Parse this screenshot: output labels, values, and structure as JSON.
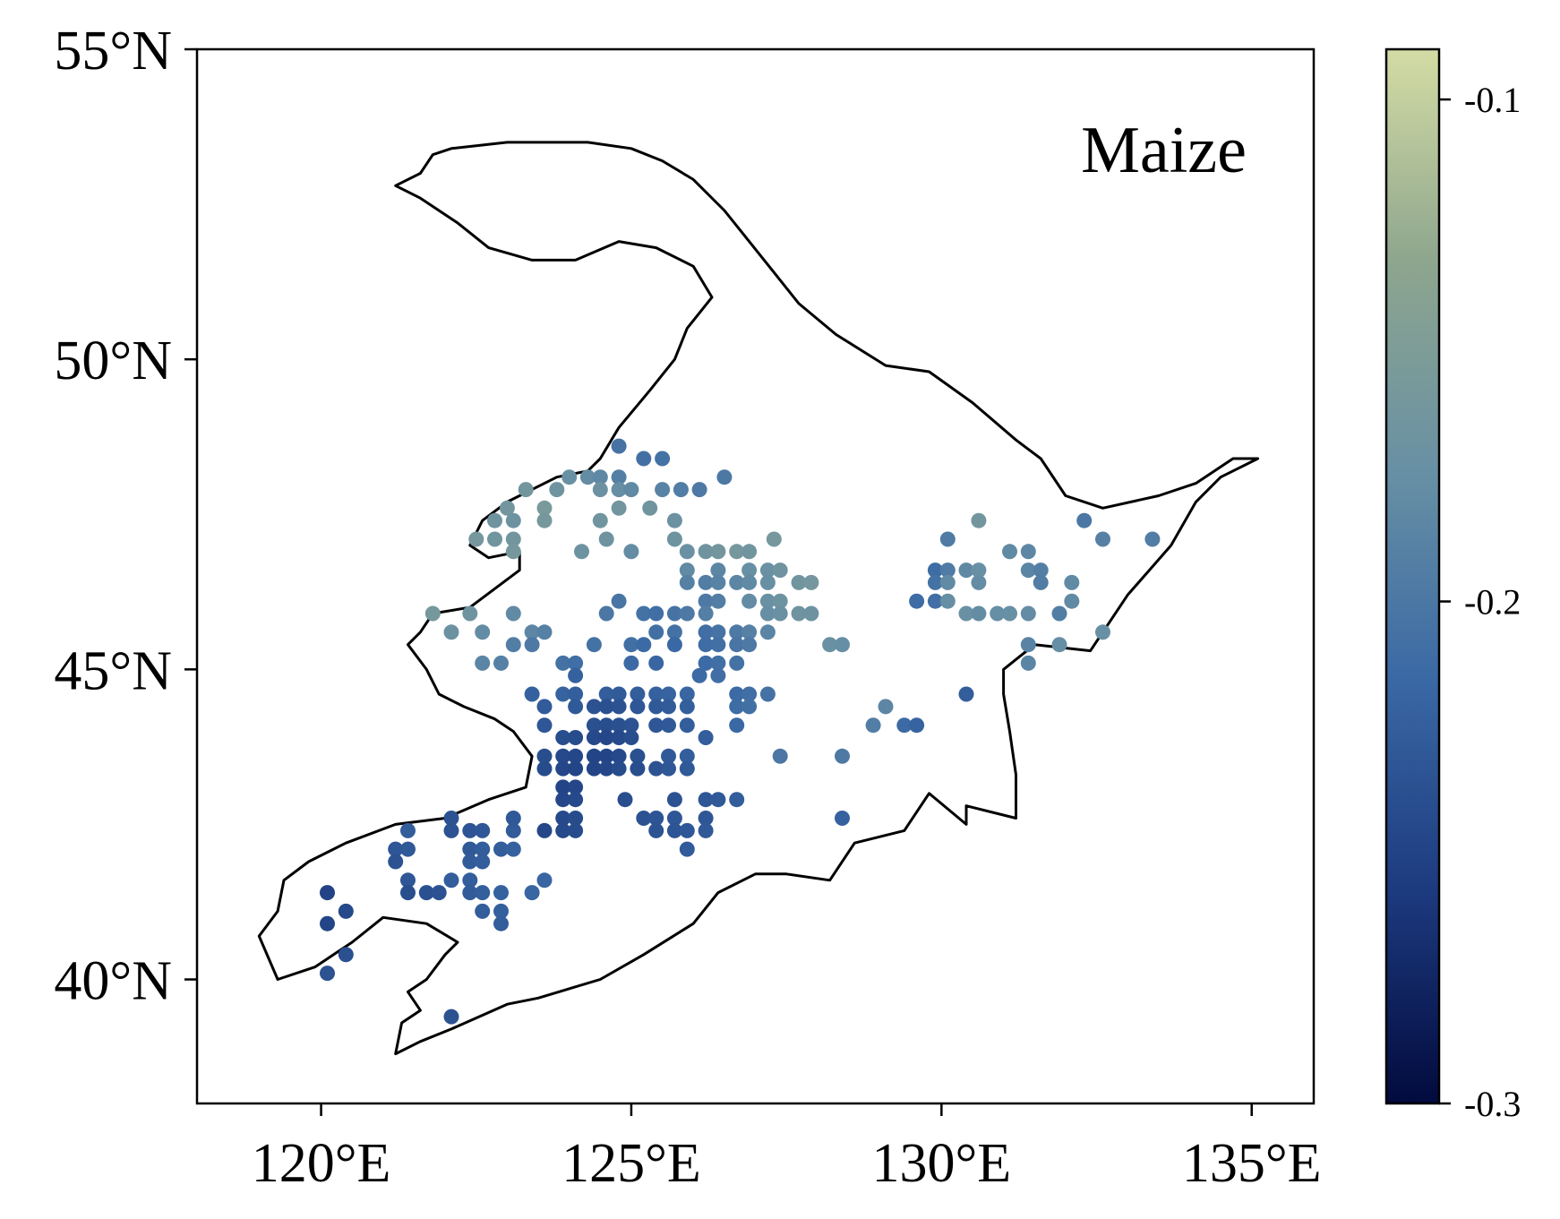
{
  "panel_label": "Maize",
  "colorbar": {
    "min": -0.3,
    "max": -0.09,
    "tick_values": [
      -0.1,
      -0.2,
      -0.3
    ],
    "tick_labels": [
      "-0.1",
      "-0.2",
      "-0.3"
    ],
    "colors": [
      "#020a3d",
      "#1c3a7e",
      "#3a68a4",
      "#6890a4",
      "#8ea68e",
      "#d4dca4"
    ]
  },
  "map": {
    "lon_range": [
      118,
      136
    ],
    "lat_range": [
      38,
      55
    ],
    "x_ticks": [
      120,
      125,
      130,
      135
    ],
    "x_tick_labels": [
      "120°E",
      "125°E",
      "130°E",
      "135°E"
    ],
    "y_ticks": [
      40,
      45,
      50,
      55
    ],
    "y_tick_labels": [
      "40°N",
      "45°N",
      "50°N",
      "55°N"
    ],
    "boundary": [
      [
        122.1,
        53.4
      ],
      [
        123.0,
        53.5
      ],
      [
        124.3,
        53.5
      ],
      [
        125.0,
        53.4
      ],
      [
        125.5,
        53.2
      ],
      [
        126.0,
        52.9
      ],
      [
        126.5,
        52.4
      ],
      [
        126.9,
        51.9
      ],
      [
        127.3,
        51.4
      ],
      [
        127.7,
        50.9
      ],
      [
        128.3,
        50.4
      ],
      [
        129.1,
        49.9
      ],
      [
        129.8,
        49.8
      ],
      [
        130.5,
        49.3
      ],
      [
        131.2,
        48.7
      ],
      [
        131.6,
        48.4
      ],
      [
        132.0,
        47.8
      ],
      [
        132.6,
        47.6
      ],
      [
        133.5,
        47.8
      ],
      [
        134.1,
        48.0
      ],
      [
        134.7,
        48.4
      ],
      [
        135.1,
        48.4
      ],
      [
        134.5,
        48.1
      ],
      [
        134.1,
        47.7
      ],
      [
        133.7,
        47.0
      ],
      [
        133.0,
        46.2
      ],
      [
        132.4,
        45.3
      ],
      [
        131.5,
        45.4
      ],
      [
        131.0,
        45.0
      ],
      [
        131.0,
        44.6
      ],
      [
        131.1,
        44.0
      ],
      [
        131.2,
        43.3
      ],
      [
        131.2,
        42.6
      ],
      [
        130.4,
        42.8
      ],
      [
        130.4,
        42.5
      ],
      [
        129.8,
        43.0
      ],
      [
        129.4,
        42.4
      ],
      [
        128.6,
        42.2
      ],
      [
        128.2,
        41.6
      ],
      [
        127.5,
        41.7
      ],
      [
        127.0,
        41.7
      ],
      [
        126.4,
        41.4
      ],
      [
        126.0,
        40.9
      ],
      [
        125.2,
        40.4
      ],
      [
        124.5,
        40.0
      ],
      [
        123.5,
        39.7
      ],
      [
        123.0,
        39.6
      ],
      [
        122.1,
        39.2
      ],
      [
        121.6,
        39.0
      ],
      [
        121.2,
        38.8
      ],
      [
        121.3,
        39.3
      ],
      [
        121.6,
        39.5
      ],
      [
        121.4,
        39.8
      ],
      [
        121.7,
        40.0
      ],
      [
        122.0,
        40.4
      ],
      [
        122.2,
        40.6
      ],
      [
        121.7,
        40.9
      ],
      [
        121.0,
        41.0
      ],
      [
        120.5,
        40.6
      ],
      [
        119.9,
        40.2
      ],
      [
        119.3,
        40.0
      ],
      [
        119.0,
        40.7
      ],
      [
        119.3,
        41.1
      ],
      [
        119.4,
        41.6
      ],
      [
        119.8,
        41.9
      ],
      [
        120.4,
        42.2
      ],
      [
        121.2,
        42.5
      ],
      [
        122.0,
        42.6
      ],
      [
        122.7,
        42.9
      ],
      [
        123.3,
        43.1
      ],
      [
        123.4,
        43.6
      ],
      [
        123.1,
        44.0
      ],
      [
        122.8,
        44.2
      ],
      [
        122.3,
        44.4
      ],
      [
        121.9,
        44.6
      ],
      [
        121.7,
        45.0
      ],
      [
        121.4,
        45.4
      ],
      [
        121.6,
        45.6
      ],
      [
        121.8,
        45.9
      ],
      [
        122.4,
        46.0
      ],
      [
        122.8,
        46.3
      ],
      [
        123.2,
        46.6
      ],
      [
        123.2,
        46.9
      ],
      [
        122.7,
        46.8
      ],
      [
        122.4,
        47.0
      ],
      [
        122.6,
        47.4
      ],
      [
        123.0,
        47.7
      ],
      [
        123.8,
        48.1
      ],
      [
        124.3,
        48.2
      ],
      [
        124.5,
        48.4
      ],
      [
        124.8,
        48.9
      ],
      [
        125.3,
        49.5
      ],
      [
        125.7,
        50.0
      ],
      [
        125.9,
        50.5
      ],
      [
        126.3,
        51.0
      ],
      [
        126.0,
        51.5
      ],
      [
        125.4,
        51.8
      ],
      [
        124.8,
        51.9
      ],
      [
        124.1,
        51.6
      ],
      [
        123.4,
        51.6
      ],
      [
        122.7,
        51.8
      ],
      [
        122.2,
        52.2
      ],
      [
        121.6,
        52.6
      ],
      [
        121.2,
        52.8
      ],
      [
        121.6,
        53.0
      ],
      [
        121.8,
        53.3
      ],
      [
        122.1,
        53.4
      ]
    ]
  },
  "points": [
    [
      124.8,
      48.6,
      -0.205
    ],
    [
      125.2,
      48.4,
      -0.208
    ],
    [
      125.5,
      48.4,
      -0.206
    ],
    [
      124.8,
      48.1,
      -0.192
    ],
    [
      126.5,
      48.1,
      -0.199
    ],
    [
      124.0,
      48.1,
      -0.172
    ],
    [
      124.3,
      48.1,
      -0.178
    ],
    [
      124.5,
      48.1,
      -0.182
    ],
    [
      123.3,
      47.9,
      -0.162
    ],
    [
      123.8,
      47.9,
      -0.166
    ],
    [
      124.5,
      47.9,
      -0.17
    ],
    [
      124.8,
      47.9,
      -0.176
    ],
    [
      125.0,
      47.9,
      -0.18
    ],
    [
      125.5,
      47.9,
      -0.188
    ],
    [
      125.8,
      47.9,
      -0.194
    ],
    [
      126.1,
      47.9,
      -0.198
    ],
    [
      123.6,
      47.6,
      -0.155
    ],
    [
      124.8,
      47.6,
      -0.162
    ],
    [
      125.3,
      47.6,
      -0.165
    ],
    [
      123.0,
      47.6,
      -0.162
    ],
    [
      122.8,
      47.4,
      -0.166
    ],
    [
      123.1,
      47.4,
      -0.168
    ],
    [
      123.6,
      47.4,
      -0.158
    ],
    [
      124.5,
      47.4,
      -0.164
    ],
    [
      125.7,
      47.4,
      -0.17
    ],
    [
      122.5,
      47.1,
      -0.16
    ],
    [
      122.8,
      47.1,
      -0.164
    ],
    [
      123.1,
      47.1,
      -0.162
    ],
    [
      124.6,
      47.1,
      -0.166
    ],
    [
      125.7,
      47.1,
      -0.168
    ],
    [
      127.3,
      47.1,
      -0.16
    ],
    [
      123.1,
      46.9,
      -0.158
    ],
    [
      124.2,
      46.9,
      -0.168
    ],
    [
      125.0,
      46.9,
      -0.178
    ],
    [
      125.9,
      46.9,
      -0.172
    ],
    [
      126.2,
      46.9,
      -0.166
    ],
    [
      126.4,
      46.9,
      -0.162
    ],
    [
      126.7,
      46.9,
      -0.16
    ],
    [
      126.9,
      46.9,
      -0.164
    ],
    [
      125.9,
      46.6,
      -0.18
    ],
    [
      126.4,
      46.6,
      -0.184
    ],
    [
      126.9,
      46.6,
      -0.174
    ],
    [
      127.2,
      46.6,
      -0.172
    ],
    [
      127.4,
      46.6,
      -0.166
    ],
    [
      125.9,
      46.4,
      -0.19
    ],
    [
      126.2,
      46.4,
      -0.194
    ],
    [
      126.4,
      46.4,
      -0.188
    ],
    [
      126.7,
      46.4,
      -0.184
    ],
    [
      126.9,
      46.4,
      -0.18
    ],
    [
      127.2,
      46.4,
      -0.174
    ],
    [
      127.7,
      46.4,
      -0.164
    ],
    [
      127.9,
      46.4,
      -0.16
    ],
    [
      126.2,
      46.1,
      -0.198
    ],
    [
      126.4,
      46.1,
      -0.194
    ],
    [
      126.9,
      46.1,
      -0.178
    ],
    [
      127.2,
      46.1,
      -0.172
    ],
    [
      127.4,
      46.1,
      -0.168
    ],
    [
      124.8,
      46.1,
      -0.202
    ],
    [
      125.2,
      45.9,
      -0.206
    ],
    [
      125.4,
      45.9,
      -0.21
    ],
    [
      125.7,
      45.9,
      -0.204
    ],
    [
      125.9,
      45.9,
      -0.198
    ],
    [
      126.2,
      45.9,
      -0.192
    ],
    [
      127.2,
      45.9,
      -0.176
    ],
    [
      127.4,
      45.9,
      -0.172
    ],
    [
      127.7,
      45.9,
      -0.166
    ],
    [
      127.9,
      45.9,
      -0.168
    ],
    [
      124.6,
      45.9,
      -0.2
    ],
    [
      121.8,
      45.9,
      -0.158
    ],
    [
      122.4,
      45.9,
      -0.166
    ],
    [
      123.1,
      45.9,
      -0.18
    ],
    [
      125.4,
      45.6,
      -0.208
    ],
    [
      125.7,
      45.6,
      -0.206
    ],
    [
      126.2,
      45.6,
      -0.21
    ],
    [
      126.4,
      45.6,
      -0.204
    ],
    [
      126.7,
      45.6,
      -0.198
    ],
    [
      126.9,
      45.6,
      -0.19
    ],
    [
      127.2,
      45.6,
      -0.186
    ],
    [
      122.1,
      45.6,
      -0.17
    ],
    [
      122.6,
      45.6,
      -0.178
    ],
    [
      123.4,
      45.6,
      -0.184
    ],
    [
      123.6,
      45.6,
      -0.19
    ],
    [
      123.1,
      45.4,
      -0.194
    ],
    [
      123.4,
      45.4,
      -0.198
    ],
    [
      124.4,
      45.4,
      -0.206
    ],
    [
      125.0,
      45.4,
      -0.208
    ],
    [
      125.2,
      45.4,
      -0.214
    ],
    [
      125.7,
      45.4,
      -0.216
    ],
    [
      126.2,
      45.4,
      -0.212
    ],
    [
      126.4,
      45.4,
      -0.208
    ],
    [
      126.7,
      45.4,
      -0.202
    ],
    [
      126.9,
      45.4,
      -0.198
    ],
    [
      128.2,
      45.4,
      -0.172
    ],
    [
      128.4,
      45.4,
      -0.176
    ],
    [
      122.6,
      45.1,
      -0.186
    ],
    [
      122.9,
      45.1,
      -0.19
    ],
    [
      123.9,
      45.1,
      -0.206
    ],
    [
      124.1,
      45.1,
      -0.21
    ],
    [
      125.0,
      45.1,
      -0.214
    ],
    [
      125.4,
      45.1,
      -0.218
    ],
    [
      126.2,
      45.1,
      -0.214
    ],
    [
      126.4,
      45.1,
      -0.21
    ],
    [
      126.7,
      45.1,
      -0.206
    ],
    [
      124.1,
      44.9,
      -0.222
    ],
    [
      126.1,
      44.9,
      -0.214
    ],
    [
      126.4,
      44.9,
      -0.21
    ],
    [
      123.4,
      44.6,
      -0.222
    ],
    [
      123.9,
      44.6,
      -0.22
    ],
    [
      124.1,
      44.6,
      -0.224
    ],
    [
      124.6,
      44.6,
      -0.226
    ],
    [
      124.8,
      44.6,
      -0.228
    ],
    [
      125.1,
      44.6,
      -0.226
    ],
    [
      125.4,
      44.6,
      -0.222
    ],
    [
      125.6,
      44.6,
      -0.22
    ],
    [
      125.9,
      44.6,
      -0.218
    ],
    [
      126.7,
      44.6,
      -0.214
    ],
    [
      126.9,
      44.6,
      -0.21
    ],
    [
      127.2,
      44.6,
      -0.206
    ],
    [
      123.6,
      44.4,
      -0.228
    ],
    [
      124.1,
      44.4,
      -0.23
    ],
    [
      124.4,
      44.4,
      -0.236
    ],
    [
      124.6,
      44.4,
      -0.238
    ],
    [
      124.8,
      44.4,
      -0.236
    ],
    [
      125.1,
      44.4,
      -0.232
    ],
    [
      125.4,
      44.4,
      -0.23
    ],
    [
      125.6,
      44.4,
      -0.228
    ],
    [
      125.9,
      44.4,
      -0.224
    ],
    [
      126.7,
      44.4,
      -0.212
    ],
    [
      126.9,
      44.4,
      -0.208
    ],
    [
      123.6,
      44.1,
      -0.232
    ],
    [
      124.4,
      44.1,
      -0.238
    ],
    [
      124.6,
      44.1,
      -0.24
    ],
    [
      124.8,
      44.1,
      -0.238
    ],
    [
      125.0,
      44.1,
      -0.236
    ],
    [
      125.4,
      44.1,
      -0.232
    ],
    [
      125.6,
      44.1,
      -0.23
    ],
    [
      125.9,
      44.1,
      -0.226
    ],
    [
      126.7,
      44.1,
      -0.216
    ],
    [
      128.9,
      44.1,
      -0.194
    ],
    [
      129.4,
      44.1,
      -0.214
    ],
    [
      129.6,
      44.1,
      -0.22
    ],
    [
      129.1,
      44.4,
      -0.184
    ],
    [
      130.4,
      44.6,
      -0.226
    ],
    [
      123.9,
      43.9,
      -0.24
    ],
    [
      124.1,
      43.9,
      -0.242
    ],
    [
      124.4,
      43.9,
      -0.244
    ],
    [
      124.6,
      43.9,
      -0.246
    ],
    [
      124.8,
      43.9,
      -0.244
    ],
    [
      125.0,
      43.9,
      -0.24
    ],
    [
      126.2,
      43.9,
      -0.226
    ],
    [
      123.6,
      43.6,
      -0.24
    ],
    [
      123.9,
      43.6,
      -0.244
    ],
    [
      124.1,
      43.6,
      -0.246
    ],
    [
      124.4,
      43.6,
      -0.248
    ],
    [
      124.6,
      43.6,
      -0.248
    ],
    [
      124.8,
      43.6,
      -0.244
    ],
    [
      125.1,
      43.6,
      -0.238
    ],
    [
      125.6,
      43.6,
      -0.23
    ],
    [
      125.9,
      43.6,
      -0.226
    ],
    [
      127.4,
      43.6,
      -0.2
    ],
    [
      128.4,
      43.6,
      -0.198
    ],
    [
      123.6,
      43.4,
      -0.242
    ],
    [
      123.9,
      43.4,
      -0.246
    ],
    [
      124.1,
      43.4,
      -0.248
    ],
    [
      124.4,
      43.4,
      -0.248
    ],
    [
      124.6,
      43.4,
      -0.246
    ],
    [
      124.8,
      43.4,
      -0.242
    ],
    [
      125.1,
      43.4,
      -0.24
    ],
    [
      125.4,
      43.4,
      -0.236
    ],
    [
      125.6,
      43.4,
      -0.232
    ],
    [
      125.9,
      43.4,
      -0.23
    ],
    [
      123.9,
      43.1,
      -0.248
    ],
    [
      124.1,
      43.1,
      -0.246
    ],
    [
      123.9,
      42.9,
      -0.246
    ],
    [
      124.1,
      42.9,
      -0.244
    ],
    [
      124.9,
      42.9,
      -0.24
    ],
    [
      125.7,
      42.9,
      -0.236
    ],
    [
      126.2,
      42.9,
      -0.232
    ],
    [
      126.4,
      42.9,
      -0.23
    ],
    [
      126.7,
      42.9,
      -0.226
    ],
    [
      123.9,
      42.6,
      -0.244
    ],
    [
      124.1,
      42.6,
      -0.242
    ],
    [
      125.2,
      42.6,
      -0.236
    ],
    [
      125.4,
      42.6,
      -0.234
    ],
    [
      125.7,
      42.6,
      -0.232
    ],
    [
      126.2,
      42.6,
      -0.232
    ],
    [
      128.4,
      42.6,
      -0.222
    ],
    [
      123.6,
      42.4,
      -0.246
    ],
    [
      123.9,
      42.4,
      -0.244
    ],
    [
      124.1,
      42.4,
      -0.242
    ],
    [
      125.4,
      42.4,
      -0.236
    ],
    [
      125.7,
      42.4,
      -0.234
    ],
    [
      125.9,
      42.4,
      -0.232
    ],
    [
      126.2,
      42.4,
      -0.23
    ],
    [
      121.4,
      42.4,
      -0.226
    ],
    [
      122.1,
      42.4,
      -0.236
    ],
    [
      122.4,
      42.4,
      -0.234
    ],
    [
      122.6,
      42.4,
      -0.232
    ],
    [
      123.1,
      42.4,
      -0.228
    ],
    [
      122.1,
      42.6,
      -0.236
    ],
    [
      123.1,
      42.6,
      -0.23
    ],
    [
      125.9,
      42.1,
      -0.228
    ],
    [
      121.2,
      42.1,
      -0.232
    ],
    [
      121.4,
      42.1,
      -0.23
    ],
    [
      122.4,
      42.1,
      -0.23
    ],
    [
      122.6,
      42.1,
      -0.226
    ],
    [
      122.9,
      42.1,
      -0.226
    ],
    [
      123.1,
      42.1,
      -0.222
    ],
    [
      121.2,
      41.9,
      -0.236
    ],
    [
      122.4,
      41.9,
      -0.228
    ],
    [
      122.6,
      41.9,
      -0.226
    ],
    [
      121.4,
      41.6,
      -0.232
    ],
    [
      122.1,
      41.6,
      -0.226
    ],
    [
      122.4,
      41.6,
      -0.226
    ],
    [
      123.6,
      41.6,
      -0.218
    ],
    [
      121.4,
      41.4,
      -0.24
    ],
    [
      121.7,
      41.4,
      -0.238
    ],
    [
      121.9,
      41.4,
      -0.236
    ],
    [
      122.4,
      41.4,
      -0.228
    ],
    [
      122.6,
      41.4,
      -0.224
    ],
    [
      122.9,
      41.4,
      -0.222
    ],
    [
      123.4,
      41.4,
      -0.218
    ],
    [
      120.1,
      41.4,
      -0.25
    ],
    [
      120.4,
      41.1,
      -0.244
    ],
    [
      122.6,
      41.1,
      -0.226
    ],
    [
      122.9,
      41.1,
      -0.224
    ],
    [
      120.1,
      40.9,
      -0.248
    ],
    [
      122.9,
      40.9,
      -0.226
    ],
    [
      120.4,
      40.4,
      -0.238
    ],
    [
      120.1,
      40.1,
      -0.236
    ],
    [
      122.1,
      39.4,
      -0.236
    ],
    [
      130.1,
      47.1,
      -0.196
    ],
    [
      130.6,
      47.4,
      -0.162
    ],
    [
      132.3,
      47.4,
      -0.2
    ],
    [
      132.6,
      47.1,
      -0.19
    ],
    [
      133.4,
      47.1,
      -0.194
    ],
    [
      129.9,
      46.6,
      -0.212
    ],
    [
      130.1,
      46.6,
      -0.196
    ],
    [
      130.4,
      46.6,
      -0.182
    ],
    [
      130.6,
      46.6,
      -0.174
    ],
    [
      131.1,
      46.9,
      -0.18
    ],
    [
      131.4,
      46.9,
      -0.184
    ],
    [
      131.4,
      46.6,
      -0.186
    ],
    [
      131.6,
      46.6,
      -0.192
    ],
    [
      129.9,
      46.4,
      -0.206
    ],
    [
      130.1,
      46.4,
      -0.18
    ],
    [
      130.6,
      46.4,
      -0.178
    ],
    [
      131.6,
      46.4,
      -0.194
    ],
    [
      132.1,
      46.4,
      -0.18
    ],
    [
      129.6,
      46.1,
      -0.212
    ],
    [
      129.9,
      46.1,
      -0.21
    ],
    [
      130.1,
      46.1,
      -0.176
    ],
    [
      132.1,
      46.1,
      -0.18
    ],
    [
      130.4,
      45.9,
      -0.172
    ],
    [
      130.6,
      45.9,
      -0.178
    ],
    [
      130.9,
      45.9,
      -0.176
    ],
    [
      131.1,
      45.9,
      -0.174
    ],
    [
      131.4,
      45.9,
      -0.178
    ],
    [
      131.9,
      45.9,
      -0.194
    ],
    [
      132.6,
      45.6,
      -0.174
    ],
    [
      131.4,
      45.4,
      -0.188
    ],
    [
      131.9,
      45.4,
      -0.176
    ],
    [
      131.4,
      45.1,
      -0.186
    ]
  ]
}
